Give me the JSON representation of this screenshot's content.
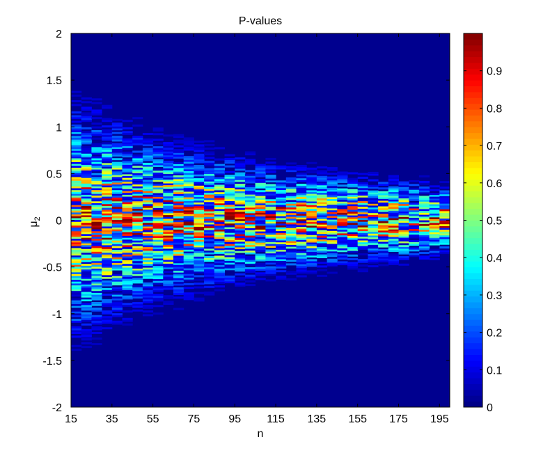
{
  "chart_data": {
    "type": "heatmap",
    "title": "P-values",
    "xlabel": "n",
    "ylabel": "μ",
    "ylabel_subscript": "2",
    "x_range": [
      15,
      200
    ],
    "y_range": [
      -2,
      2
    ],
    "x_ticks": [
      15,
      35,
      55,
      75,
      95,
      115,
      135,
      155,
      175,
      195
    ],
    "x_tick_labels": [
      "15",
      "35",
      "55",
      "75",
      "95",
      "115",
      "135",
      "155",
      "175",
      "195"
    ],
    "y_ticks": [
      2,
      1.5,
      1,
      0.5,
      0,
      -0.5,
      -1,
      -1.5,
      -2
    ],
    "y_tick_labels": [
      "2",
      "1.5",
      "1",
      "0.5",
      "0",
      "-0.5",
      "-1",
      "-1.5",
      "-2"
    ],
    "colorbar": {
      "colormap": "jet",
      "range": [
        0,
        1
      ],
      "ticks": [
        0,
        0.1,
        0.2,
        0.3,
        0.4,
        0.5,
        0.6,
        0.7,
        0.8,
        0.9
      ],
      "tick_labels": [
        "0",
        "0.1",
        "0.2",
        "0.3",
        "0.4",
        "0.5",
        "0.6",
        "0.7",
        "0.8",
        "0.9"
      ]
    },
    "background_color": "#00008f",
    "spread_description_points": [
      {
        "n": 15,
        "half_width": 1.3
      },
      {
        "n": 55,
        "half_width": 0.9
      },
      {
        "n": 115,
        "half_width": 0.6
      },
      {
        "n": 195,
        "half_width": 0.4
      }
    ]
  }
}
